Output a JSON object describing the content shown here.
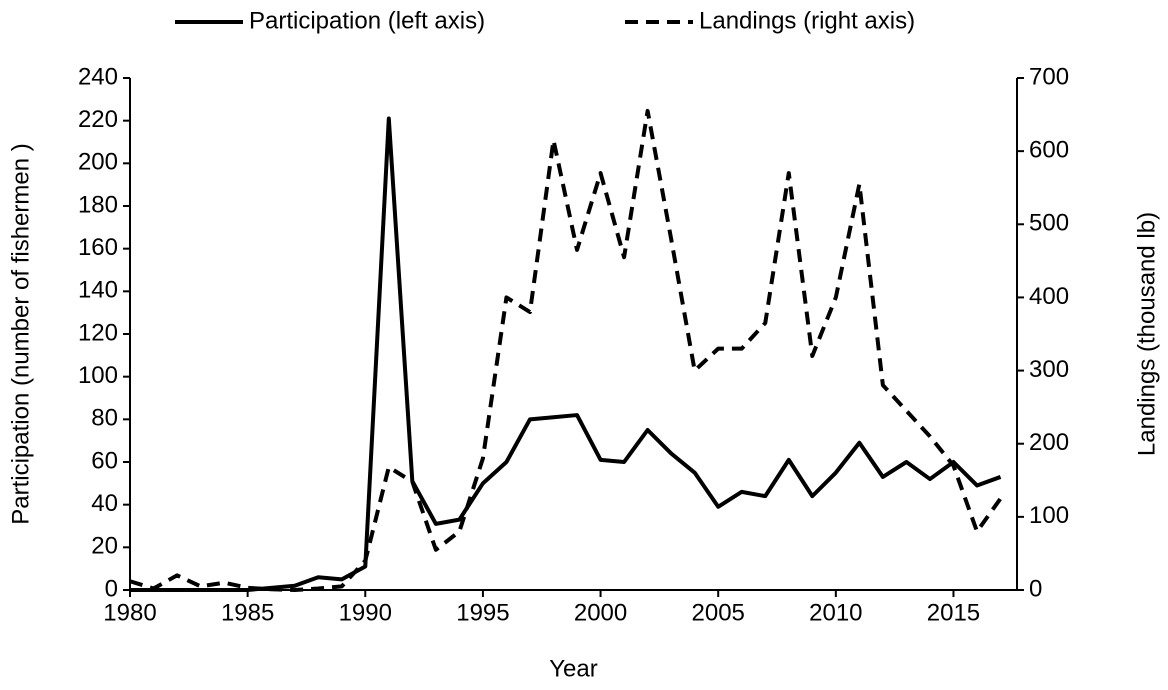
{
  "chart_data": {
    "type": "line",
    "x_label": "Year",
    "y_label": "Participation (number of fishermen )",
    "y2_label": "Landings (thousand lb)",
    "x": [
      1980,
      1981,
      1982,
      1983,
      1984,
      1985,
      1986,
      1987,
      1988,
      1989,
      1990,
      1991,
      1992,
      1993,
      1994,
      1995,
      1996,
      1997,
      1998,
      1999,
      2000,
      2001,
      2002,
      2003,
      2004,
      2005,
      2006,
      2007,
      2008,
      2009,
      2010,
      2011,
      2012,
      2013,
      2014,
      2015,
      2016,
      2017
    ],
    "series": [
      {
        "name": "Participation (left axis)",
        "color": "#000000",
        "dash": false,
        "axis": "y",
        "values": [
          0,
          0,
          0,
          0,
          0,
          0,
          1,
          2,
          6,
          5,
          11,
          221,
          51,
          31,
          33,
          50,
          60,
          80,
          81,
          82,
          61,
          60,
          75,
          64,
          55,
          39,
          46,
          44,
          61,
          44,
          55,
          69,
          53,
          60,
          52,
          60,
          49,
          53
        ]
      },
      {
        "name": "Landings (right axis)",
        "color": "#000000",
        "dash": true,
        "axis": "y2",
        "values": [
          12,
          2,
          20,
          5,
          10,
          3,
          1,
          0,
          2,
          5,
          40,
          168,
          148,
          55,
          80,
          180,
          400,
          380,
          615,
          465,
          570,
          455,
          655,
          480,
          300,
          330,
          330,
          365,
          570,
          320,
          400,
          555,
          280,
          245,
          210,
          170,
          80,
          125
        ]
      }
    ],
    "xlim": [
      1980,
      2017.7
    ],
    "xticks": [
      1980,
      1985,
      1990,
      1995,
      2000,
      2005,
      2010,
      2015
    ],
    "ylim": [
      0,
      240
    ],
    "yticks": [
      0,
      20,
      40,
      60,
      80,
      100,
      120,
      140,
      160,
      180,
      200,
      220,
      240
    ],
    "y2lim": [
      0,
      700
    ],
    "y2ticks": [
      0,
      100,
      200,
      300,
      400,
      500,
      600,
      700
    ],
    "legend": "top"
  }
}
